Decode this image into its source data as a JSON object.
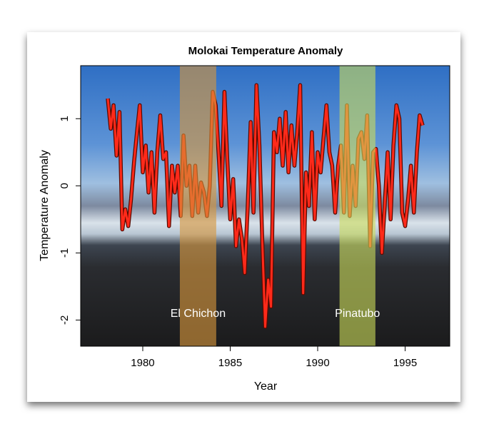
{
  "chart_data": {
    "type": "line",
    "title": "Molokai Temperature Anomaly",
    "xlabel": "Year",
    "ylabel": "Temperature Anomaly",
    "x": [
      1978.0,
      1978.17,
      1978.33,
      1978.5,
      1978.67,
      1978.83,
      1979.0,
      1979.17,
      1979.33,
      1979.5,
      1979.67,
      1979.83,
      1980.0,
      1980.17,
      1980.33,
      1980.5,
      1980.67,
      1980.83,
      1981.0,
      1981.17,
      1981.33,
      1981.5,
      1981.67,
      1981.83,
      1982.0,
      1982.17,
      1982.33,
      1982.5,
      1982.67,
      1982.83,
      1983.0,
      1983.17,
      1983.33,
      1983.5,
      1983.67,
      1983.83,
      1984.0,
      1984.17,
      1984.33,
      1984.5,
      1984.67,
      1984.83,
      1985.0,
      1985.17,
      1985.33,
      1985.5,
      1985.67,
      1985.83,
      1986.0,
      1986.17,
      1986.33,
      1986.5,
      1986.67,
      1986.83,
      1987.0,
      1987.17,
      1987.33,
      1987.5,
      1987.67,
      1987.83,
      1988.0,
      1988.17,
      1988.33,
      1988.5,
      1988.67,
      1988.83,
      1989.0,
      1989.17,
      1989.33,
      1989.5,
      1989.67,
      1989.83,
      1990.0,
      1990.17,
      1990.33,
      1990.5,
      1990.67,
      1990.83,
      1991.0,
      1991.17,
      1991.33,
      1991.5,
      1991.67,
      1991.83,
      1992.0,
      1992.17,
      1992.33,
      1992.5,
      1992.67,
      1992.83,
      1993.0,
      1993.17,
      1993.33,
      1993.5,
      1993.67,
      1993.83,
      1994.0,
      1994.17,
      1994.33,
      1994.5,
      1994.67,
      1994.83,
      1995.0,
      1995.17,
      1995.33,
      1995.5,
      1995.67,
      1995.83,
      1996.0
    ],
    "series": [
      {
        "name": "Temperature Anomaly",
        "color": "#ff2a1a",
        "values": [
          1.3,
          0.85,
          1.2,
          0.45,
          1.1,
          -0.65,
          -0.35,
          -0.6,
          -0.2,
          0.35,
          0.8,
          1.2,
          0.2,
          0.6,
          -0.1,
          0.5,
          -0.4,
          0.5,
          1.05,
          0.4,
          0.5,
          -0.6,
          0.3,
          -0.1,
          0.3,
          -0.45,
          0.75,
          0.0,
          0.3,
          -0.45,
          0.3,
          -0.4,
          0.05,
          -0.1,
          -0.45,
          0.0,
          1.4,
          1.2,
          0.5,
          -0.3,
          1.4,
          0.4,
          -0.5,
          0.1,
          -0.9,
          -0.5,
          -0.8,
          -1.3,
          -0.3,
          0.95,
          -0.4,
          1.5,
          0.6,
          -0.8,
          -2.1,
          -1.4,
          -1.8,
          0.8,
          0.5,
          1.0,
          0.3,
          1.1,
          0.2,
          0.9,
          0.3,
          0.8,
          1.5,
          -1.6,
          0.2,
          -0.3,
          0.8,
          -0.5,
          0.5,
          0.2,
          0.7,
          1.2,
          0.5,
          0.3,
          -0.4,
          0.3,
          0.6,
          -0.4,
          1.2,
          -0.45,
          0.3,
          -0.3,
          0.7,
          0.8,
          0.4,
          1.05,
          -0.9,
          0.5,
          0.55,
          0.0,
          -1.0,
          -0.3,
          0.5,
          -0.5,
          0.6,
          1.2,
          1.0,
          -0.4,
          -0.6,
          -0.2,
          0.3,
          -0.4,
          0.5,
          1.05,
          0.9
        ]
      }
    ],
    "annotations": [
      {
        "label": "El Chichon",
        "x": [
          1982.12,
          1984.2
        ],
        "color": "rgba(214,150,60,0.62)"
      },
      {
        "label": "Pinatubo",
        "x": [
          1991.25,
          1993.3
        ],
        "color": "rgba(205,222,90,0.6)"
      }
    ],
    "xlim": [
      1976.45,
      1997.55
    ],
    "ylim": [
      -2.39,
      1.79
    ],
    "xticks": [
      1980,
      1985,
      1990,
      1995
    ],
    "yticks": [
      -2,
      -1,
      0,
      1
    ]
  }
}
